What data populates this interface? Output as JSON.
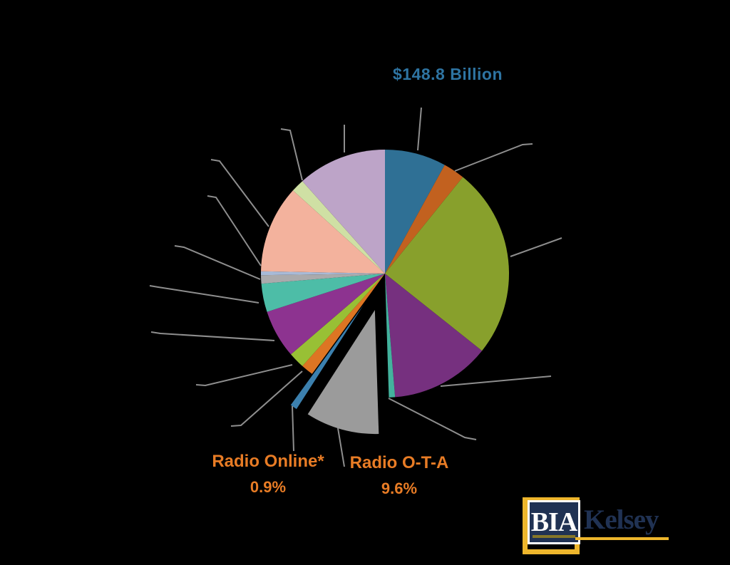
{
  "chart_data": {
    "type": "pie",
    "title": "$148.8 Billion",
    "legend": "none",
    "slices": [
      {
        "name": "steel-blue",
        "label": "",
        "pct_label": "",
        "value": 8.0,
        "color": "#2f7095",
        "exploded": false
      },
      {
        "name": "burnt-orange",
        "label": "",
        "pct_label": "",
        "value": 2.8,
        "color": "#c2611f",
        "exploded": false
      },
      {
        "name": "olive-green",
        "label": "",
        "pct_label": "",
        "value": 24.9,
        "color": "#88a02c",
        "exploded": false
      },
      {
        "name": "dark-purple",
        "label": "",
        "pct_label": "",
        "value": 13.0,
        "color": "#76307f",
        "exploded": false
      },
      {
        "name": "teal-sliver",
        "label": "",
        "pct_label": "",
        "value": 0.8,
        "color": "#43b29d",
        "exploded": false
      },
      {
        "name": "radio-ota",
        "label": "Radio O-T-A",
        "pct_label": "9.6%",
        "value": 9.6,
        "color": "#9b9b9b",
        "exploded": true
      },
      {
        "name": "radio-online",
        "label": "Radio Online*",
        "pct_label": "0.9%",
        "value": 0.9,
        "color": "#3c80ae",
        "exploded": true
      },
      {
        "name": "orange",
        "label": "",
        "pct_label": "",
        "value": 1.6,
        "color": "#dd7523",
        "exploded": false
      },
      {
        "name": "chartreuse",
        "label": "",
        "pct_label": "",
        "value": 2.1,
        "color": "#98c035",
        "exploded": false
      },
      {
        "name": "violet",
        "label": "",
        "pct_label": "",
        "value": 6.3,
        "color": "#8d3390",
        "exploded": false
      },
      {
        "name": "teal",
        "label": "",
        "pct_label": "",
        "value": 3.7,
        "color": "#4dbda7",
        "exploded": false
      },
      {
        "name": "light-gray",
        "label": "",
        "pct_label": "",
        "value": 1.1,
        "color": "#aaaaac",
        "exploded": false
      },
      {
        "name": "periwinkle",
        "label": "",
        "pct_label": "",
        "value": 0.5,
        "color": "#a8bad7",
        "exploded": false
      },
      {
        "name": "peach",
        "label": "",
        "pct_label": "",
        "value": 11.4,
        "color": "#f3b29d",
        "exploded": false
      },
      {
        "name": "pale-green",
        "label": "",
        "pct_label": "",
        "value": 1.7,
        "color": "#cfe0a4",
        "exploded": false
      },
      {
        "name": "lavender",
        "label": "",
        "pct_label": "",
        "value": 11.6,
        "color": "#bda4c8",
        "exploded": false
      }
    ]
  },
  "logo": {
    "bia": "BIA",
    "kelsey": "Kelsey"
  },
  "colors": {
    "background": "#000000",
    "leader_line": "#8e8e8e",
    "title_blue": "#2e74a2",
    "callout_orange": "#e87c25",
    "logo_navy": "#203253",
    "logo_gold": "#eeb62c"
  }
}
